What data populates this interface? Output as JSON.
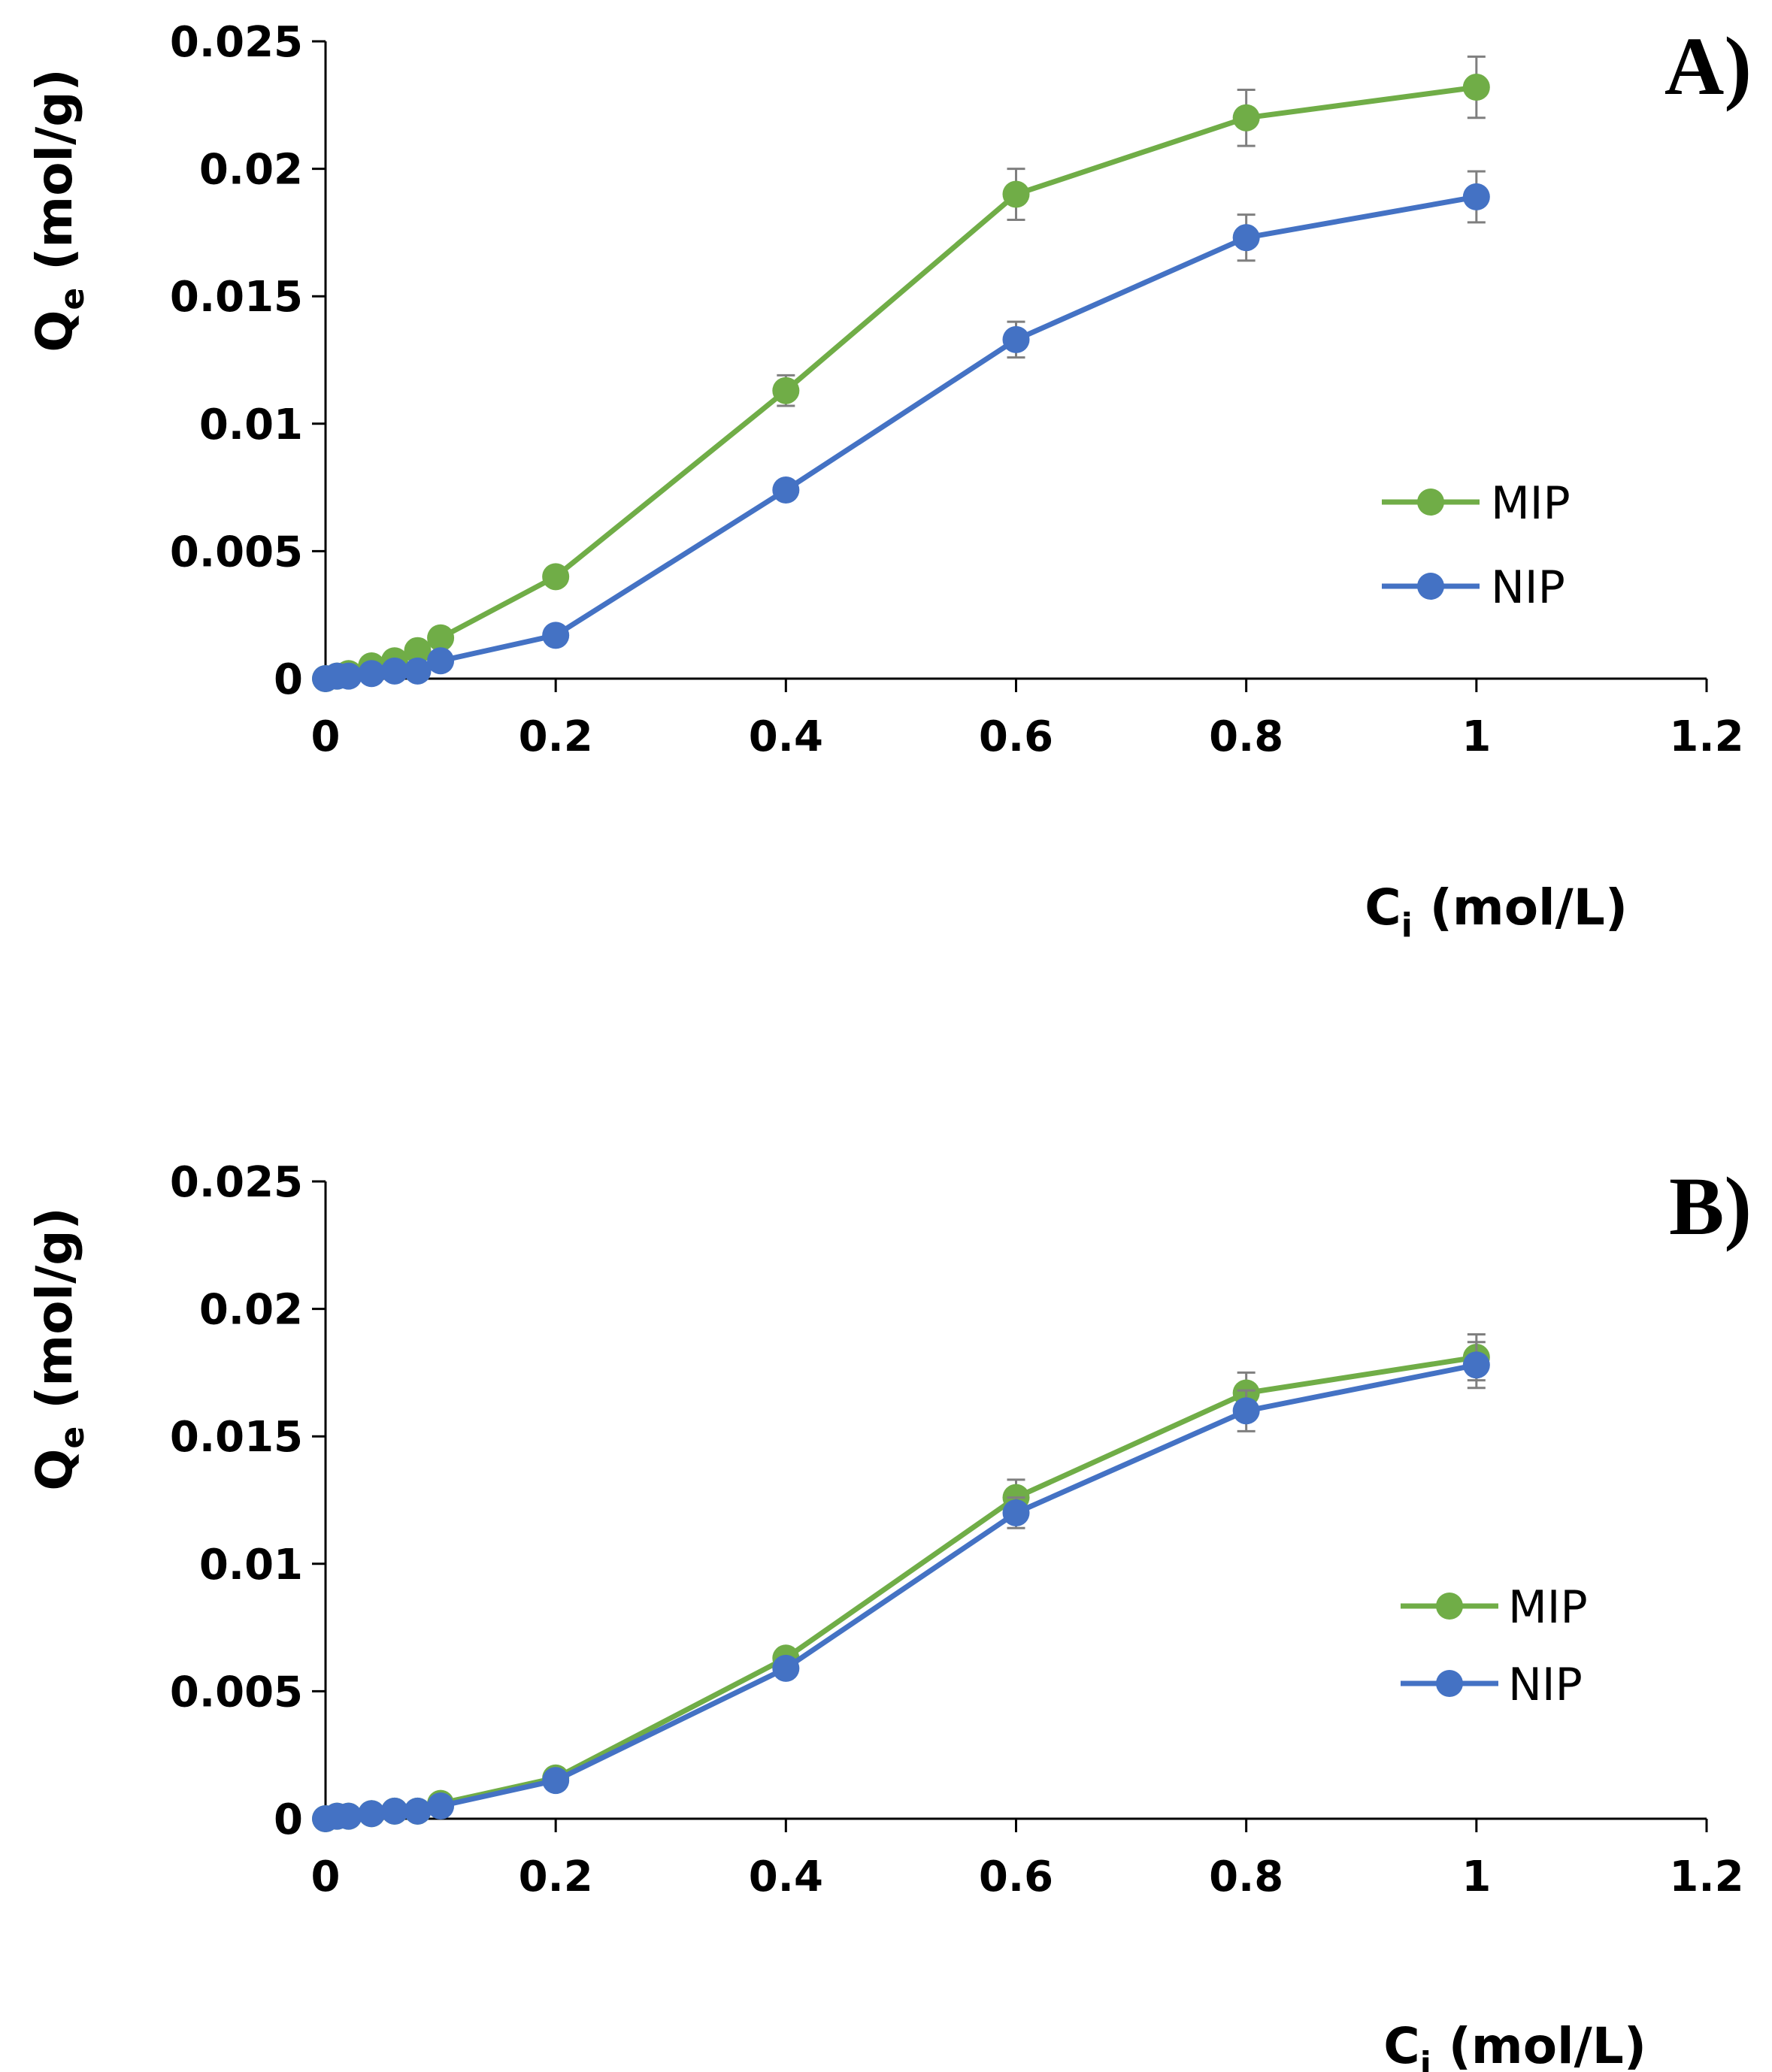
{
  "chart_data": [
    {
      "type": "line",
      "panel_label": "A)",
      "xlabel_main": "C",
      "xlabel_sub": "i",
      "xlabel_unit": " (mol/L)",
      "ylabel_main": "Q",
      "ylabel_sub": "e",
      "ylabel_unit": " (mol/g)",
      "xlim": [
        0,
        1.2
      ],
      "ylim": [
        0,
        0.025
      ],
      "xticks": [
        0,
        0.2,
        0.4,
        0.6,
        0.8,
        1,
        1.2
      ],
      "xtick_labels": [
        "0",
        "0.2",
        "0.4",
        "0.6",
        "0.8",
        "1",
        "1.2"
      ],
      "yticks": [
        0,
        0.005,
        0.01,
        0.015,
        0.02,
        0.025
      ],
      "ytick_labels": [
        "0",
        "0.005",
        "0.01",
        "0.015",
        "0.02",
        "0.025"
      ],
      "legend_position": "right",
      "series": [
        {
          "name": "MIP",
          "color": "#70ad47",
          "x": [
            0,
            0.01,
            0.02,
            0.04,
            0.06,
            0.08,
            0.1,
            0.2,
            0.4,
            0.6,
            0.8,
            1
          ],
          "y": [
            0,
            0.0001,
            0.0002,
            0.0005,
            0.0007,
            0.0011,
            0.0016,
            0.004,
            0.0113,
            0.019,
            0.022,
            0.0232
          ],
          "err": [
            0,
            0,
            0,
            0,
            0,
            0,
            0,
            0,
            0.0006,
            0.001,
            0.0011,
            0.0012
          ]
        },
        {
          "name": "NIP",
          "color": "#4472c4",
          "x": [
            0,
            0.01,
            0.02,
            0.04,
            0.06,
            0.08,
            0.1,
            0.2,
            0.4,
            0.6,
            0.8,
            1
          ],
          "y": [
            0,
            0.0001,
            0.0001,
            0.0002,
            0.0003,
            0.0003,
            0.0007,
            0.0017,
            0.0074,
            0.0133,
            0.0173,
            0.0189
          ],
          "err": [
            0,
            0,
            0,
            0,
            0,
            0,
            0,
            0,
            0,
            0.0007,
            0.0009,
            0.001
          ]
        }
      ]
    },
    {
      "type": "line",
      "panel_label": "B)",
      "xlabel_main": "C",
      "xlabel_sub": "i",
      "xlabel_unit": " (mol/L)",
      "ylabel_main": "Q",
      "ylabel_sub": "e",
      "ylabel_unit": " (mol/g)",
      "xlim": [
        0,
        1.2
      ],
      "ylim": [
        0,
        0.025
      ],
      "xticks": [
        0,
        0.2,
        0.4,
        0.6,
        0.8,
        1,
        1.2
      ],
      "xtick_labels": [
        "0",
        "0.2",
        "0.4",
        "0.6",
        "0.8",
        "1",
        "1.2"
      ],
      "yticks": [
        0,
        0.005,
        0.01,
        0.015,
        0.02,
        0.025
      ],
      "ytick_labels": [
        "0",
        "0.005",
        "0.01",
        "0.015",
        "0.02",
        "0.025"
      ],
      "legend_position": "right",
      "series": [
        {
          "name": "MIP",
          "color": "#70ad47",
          "x": [
            0,
            0.01,
            0.02,
            0.04,
            0.06,
            0.08,
            0.1,
            0.2,
            0.4,
            0.6,
            0.8,
            1
          ],
          "y": [
            0,
            0.0001,
            0.0001,
            0.0002,
            0.0003,
            0.0003,
            0.0006,
            0.0016,
            0.0063,
            0.0126,
            0.0167,
            0.0181
          ],
          "err": [
            0,
            0,
            0,
            0,
            0,
            0,
            0,
            0,
            0,
            0.0007,
            0.0008,
            0.0009
          ]
        },
        {
          "name": "NIP",
          "color": "#4472c4",
          "x": [
            0,
            0.01,
            0.02,
            0.04,
            0.06,
            0.08,
            0.1,
            0.2,
            0.4,
            0.6,
            0.8,
            1
          ],
          "y": [
            0,
            0.0001,
            0.0001,
            0.0002,
            0.0003,
            0.0003,
            0.0005,
            0.0015,
            0.0059,
            0.012,
            0.016,
            0.0178
          ],
          "err": [
            0,
            0,
            0,
            0,
            0,
            0,
            0,
            0,
            0,
            0.0006,
            0.0008,
            0.0009
          ]
        }
      ]
    }
  ]
}
